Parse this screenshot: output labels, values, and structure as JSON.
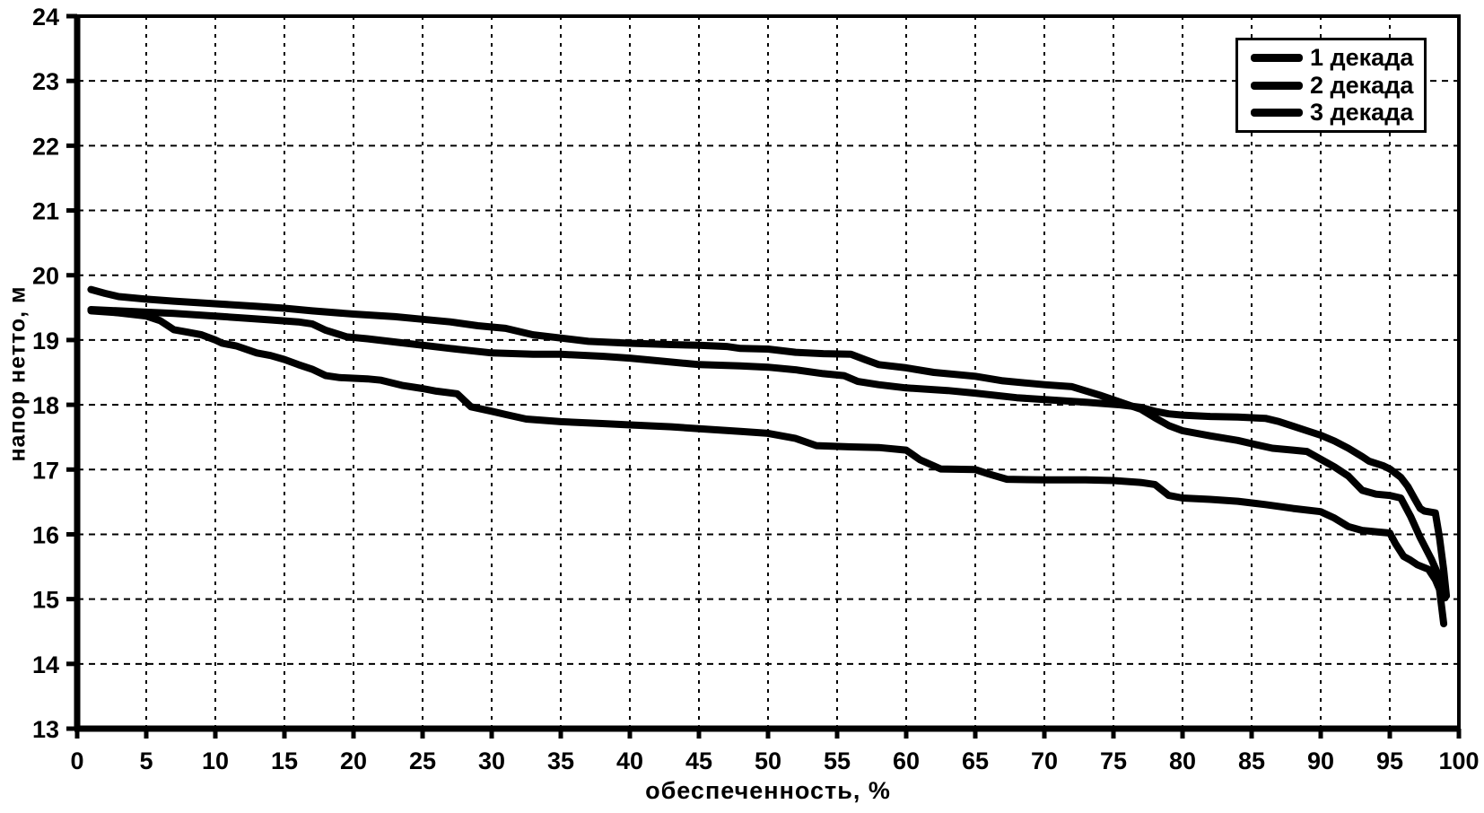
{
  "chart_data": {
    "type": "line",
    "title": "",
    "xlabel": "обеспеченность, %",
    "ylabel": "напор нетто, м",
    "xlim": [
      0,
      100
    ],
    "ylim": [
      13,
      24
    ],
    "x_ticks": [
      0,
      5,
      10,
      15,
      20,
      25,
      30,
      35,
      40,
      45,
      50,
      55,
      60,
      65,
      70,
      75,
      80,
      85,
      90,
      95,
      100
    ],
    "y_ticks": [
      13,
      14,
      15,
      16,
      17,
      18,
      19,
      20,
      21,
      22,
      23,
      24
    ],
    "grid": true,
    "grid_style": "dashed",
    "legend_position": "top-right",
    "line_color": "#000000",
    "background_color": "#ffffff",
    "series": [
      {
        "name": "1 декада",
        "color": "#000000",
        "points": [
          [
            1,
            19.78
          ],
          [
            2,
            19.72
          ],
          [
            3,
            19.67
          ],
          [
            5,
            19.63
          ],
          [
            7,
            19.6
          ],
          [
            10,
            19.56
          ],
          [
            13,
            19.52
          ],
          [
            15,
            19.49
          ],
          [
            17,
            19.45
          ],
          [
            20,
            19.4
          ],
          [
            23,
            19.36
          ],
          [
            25,
            19.32
          ],
          [
            27,
            19.28
          ],
          [
            29,
            19.22
          ],
          [
            31,
            19.18
          ],
          [
            33,
            19.08
          ],
          [
            35,
            19.03
          ],
          [
            37,
            18.98
          ],
          [
            40,
            18.95
          ],
          [
            43,
            18.93
          ],
          [
            45,
            18.92
          ],
          [
            47,
            18.9
          ],
          [
            48,
            18.87
          ],
          [
            50,
            18.86
          ],
          [
            52,
            18.81
          ],
          [
            54,
            18.79
          ],
          [
            56,
            18.78
          ],
          [
            57,
            18.7
          ],
          [
            58,
            18.62
          ],
          [
            60,
            18.57
          ],
          [
            62,
            18.5
          ],
          [
            65,
            18.44
          ],
          [
            67,
            18.37
          ],
          [
            70,
            18.31
          ],
          [
            72,
            18.28
          ],
          [
            74,
            18.15
          ],
          [
            75.5,
            18.04
          ],
          [
            77,
            17.93
          ],
          [
            78,
            17.8
          ],
          [
            79,
            17.68
          ],
          [
            80,
            17.6
          ],
          [
            82,
            17.52
          ],
          [
            84,
            17.45
          ],
          [
            85,
            17.4
          ],
          [
            86.5,
            17.33
          ],
          [
            88,
            17.3
          ],
          [
            89,
            17.28
          ],
          [
            90,
            17.16
          ],
          [
            91,
            17.04
          ],
          [
            92,
            16.9
          ],
          [
            93,
            16.68
          ],
          [
            94,
            16.62
          ],
          [
            95,
            16.6
          ],
          [
            95.8,
            16.56
          ],
          [
            96.5,
            16.28
          ],
          [
            97.2,
            15.95
          ],
          [
            98,
            15.62
          ],
          [
            98.5,
            15.38
          ],
          [
            99,
            15.02
          ]
        ]
      },
      {
        "name": "2 декада",
        "color": "#000000",
        "points": [
          [
            1,
            19.47
          ],
          [
            3,
            19.45
          ],
          [
            5,
            19.43
          ],
          [
            7,
            19.41
          ],
          [
            10,
            19.37
          ],
          [
            12,
            19.34
          ],
          [
            14,
            19.31
          ],
          [
            16,
            19.28
          ],
          [
            17,
            19.25
          ],
          [
            18,
            19.15
          ],
          [
            19.5,
            19.05
          ],
          [
            21,
            19.02
          ],
          [
            23,
            18.97
          ],
          [
            25,
            18.92
          ],
          [
            27,
            18.87
          ],
          [
            30,
            18.8
          ],
          [
            33,
            18.78
          ],
          [
            35,
            18.78
          ],
          [
            38,
            18.75
          ],
          [
            40,
            18.72
          ],
          [
            42,
            18.68
          ],
          [
            44,
            18.64
          ],
          [
            45,
            18.62
          ],
          [
            48,
            18.6
          ],
          [
            50,
            18.58
          ],
          [
            52,
            18.54
          ],
          [
            54,
            18.48
          ],
          [
            55.5,
            18.45
          ],
          [
            56.5,
            18.36
          ],
          [
            58,
            18.31
          ],
          [
            60,
            18.26
          ],
          [
            63,
            18.22
          ],
          [
            65,
            18.18
          ],
          [
            68,
            18.11
          ],
          [
            70,
            18.08
          ],
          [
            73,
            18.04
          ],
          [
            75.5,
            18.0
          ],
          [
            77,
            17.96
          ],
          [
            78,
            17.9
          ],
          [
            79,
            17.86
          ],
          [
            80,
            17.84
          ],
          [
            82,
            17.82
          ],
          [
            84,
            17.81
          ],
          [
            86,
            17.79
          ],
          [
            87,
            17.74
          ],
          [
            88,
            17.67
          ],
          [
            89,
            17.6
          ],
          [
            90,
            17.53
          ],
          [
            91,
            17.44
          ],
          [
            92,
            17.33
          ],
          [
            93,
            17.2
          ],
          [
            93.5,
            17.13
          ],
          [
            94.5,
            17.06
          ],
          [
            95,
            17.01
          ],
          [
            95.8,
            16.88
          ],
          [
            96.3,
            16.74
          ],
          [
            96.8,
            16.55
          ],
          [
            97.2,
            16.4
          ],
          [
            97.5,
            16.36
          ],
          [
            98.3,
            16.33
          ],
          [
            98.6,
            15.95
          ],
          [
            98.9,
            15.45
          ],
          [
            99.1,
            15.05
          ]
        ]
      },
      {
        "name": "3 декада",
        "color": "#000000",
        "points": [
          [
            1,
            19.45
          ],
          [
            3,
            19.42
          ],
          [
            5,
            19.37
          ],
          [
            6,
            19.3
          ],
          [
            6.5,
            19.23
          ],
          [
            7,
            19.16
          ],
          [
            8,
            19.12
          ],
          [
            9,
            19.08
          ],
          [
            10,
            19.0
          ],
          [
            10.5,
            18.95
          ],
          [
            11.5,
            18.91
          ],
          [
            13,
            18.8
          ],
          [
            14,
            18.76
          ],
          [
            15,
            18.7
          ],
          [
            16,
            18.62
          ],
          [
            17,
            18.55
          ],
          [
            18,
            18.45
          ],
          [
            19,
            18.42
          ],
          [
            21,
            18.4
          ],
          [
            22,
            18.38
          ],
          [
            23.5,
            18.3
          ],
          [
            25,
            18.25
          ],
          [
            26,
            18.21
          ],
          [
            27.5,
            18.17
          ],
          [
            28.5,
            17.97
          ],
          [
            30,
            17.9
          ],
          [
            31,
            17.85
          ],
          [
            32.5,
            17.78
          ],
          [
            35,
            17.74
          ],
          [
            38,
            17.71
          ],
          [
            40,
            17.69
          ],
          [
            43,
            17.66
          ],
          [
            45,
            17.63
          ],
          [
            48,
            17.59
          ],
          [
            50,
            17.56
          ],
          [
            52,
            17.48
          ],
          [
            53.5,
            17.37
          ],
          [
            56,
            17.35
          ],
          [
            58,
            17.34
          ],
          [
            60,
            17.3
          ],
          [
            61,
            17.15
          ],
          [
            62.5,
            17.01
          ],
          [
            65,
            17.0
          ],
          [
            66,
            16.93
          ],
          [
            67.3,
            16.85
          ],
          [
            70,
            16.84
          ],
          [
            73,
            16.84
          ],
          [
            75,
            16.83
          ],
          [
            77,
            16.8
          ],
          [
            78,
            16.77
          ],
          [
            79,
            16.6
          ],
          [
            80,
            16.56
          ],
          [
            82,
            16.54
          ],
          [
            84,
            16.51
          ],
          [
            86,
            16.46
          ],
          [
            88,
            16.4
          ],
          [
            90,
            16.35
          ],
          [
            91,
            16.25
          ],
          [
            92,
            16.12
          ],
          [
            93,
            16.06
          ],
          [
            94,
            16.04
          ],
          [
            95,
            16.02
          ],
          [
            95.4,
            15.86
          ],
          [
            96,
            15.66
          ],
          [
            96.5,
            15.6
          ],
          [
            97,
            15.53
          ],
          [
            97.8,
            15.46
          ],
          [
            98.3,
            15.3
          ],
          [
            98.6,
            15.15
          ],
          [
            98.9,
            14.62
          ]
        ]
      }
    ]
  }
}
